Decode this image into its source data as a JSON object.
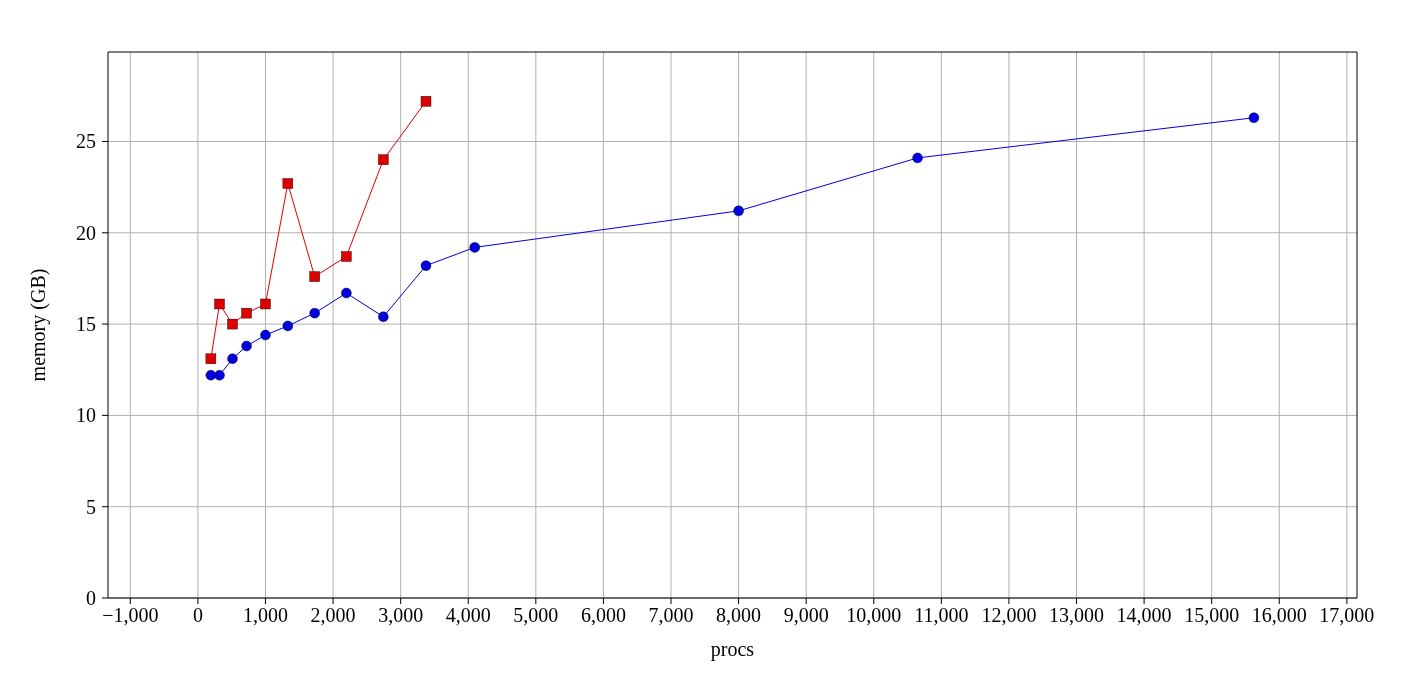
{
  "chart_data": {
    "type": "line",
    "xlabel": "procs",
    "ylabel": "memory (GB)",
    "xlim": [
      -1330,
      17150
    ],
    "ylim": [
      0,
      29.9
    ],
    "xticks": [
      {
        "value": -1000,
        "label": "−1,000"
      },
      0,
      {
        "value": 1000,
        "label": "1,000"
      },
      {
        "value": 2000,
        "label": "2,000"
      },
      {
        "value": 3000,
        "label": "3,000"
      },
      {
        "value": 4000,
        "label": "4,000"
      },
      {
        "value": 5000,
        "label": "5,000"
      },
      {
        "value": 6000,
        "label": "6,000"
      },
      {
        "value": 7000,
        "label": "7,000"
      },
      {
        "value": 8000,
        "label": "8,000"
      },
      {
        "value": 9000,
        "label": "9,000"
      },
      {
        "value": 10000,
        "label": "10,000"
      },
      {
        "value": 11000,
        "label": "11,000"
      },
      {
        "value": 12000,
        "label": "12,000"
      },
      {
        "value": 13000,
        "label": "13,000"
      },
      {
        "value": 14000,
        "label": "14,000"
      },
      {
        "value": 15000,
        "label": "15,000"
      },
      {
        "value": 16000,
        "label": "16,000"
      },
      {
        "value": 17000,
        "label": "17,000"
      }
    ],
    "yticks": [
      0,
      5,
      10,
      15,
      20,
      25
    ],
    "grid": true,
    "series": [
      {
        "color": "#0000dd",
        "marker": "circle",
        "x": [
          192,
          320,
          512,
          720,
          1000,
          1331,
          1728,
          2197,
          2744,
          3375,
          4096,
          8000,
          10648,
          15625
        ],
        "values": [
          12.2,
          12.2,
          13.1,
          13.8,
          14.4,
          14.9,
          15.6,
          16.7,
          15.4,
          18.2,
          19.2,
          21.2,
          24.1,
          26.3
        ]
      },
      {
        "color": "#dd0000",
        "marker": "square",
        "x": [
          192,
          320,
          512,
          720,
          1000,
          1331,
          1728,
          2197,
          2744,
          3375
        ],
        "values": [
          13.1,
          16.1,
          15.0,
          15.6,
          16.1,
          22.7,
          17.6,
          18.7,
          24.0,
          27.2
        ]
      }
    ]
  }
}
